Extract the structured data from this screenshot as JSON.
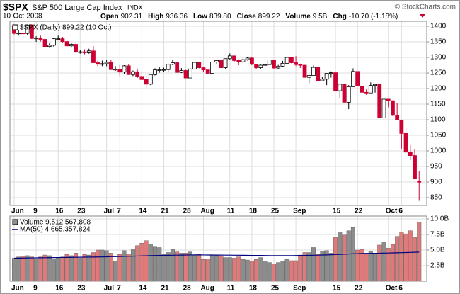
{
  "chart_data": {
    "type": "candlestick",
    "symbol": "$SPX",
    "name": "S&P 500 Large Cap Index",
    "exchange": "INDX",
    "credit": "© StockCharts.com",
    "date": "10-Oct-2008",
    "stats": [
      {
        "label": "Open",
        "value": "902.31"
      },
      {
        "label": "High",
        "value": "936.36"
      },
      {
        "label": "Low",
        "value": "839.80"
      },
      {
        "label": "Close",
        "value": "899.22"
      },
      {
        "label": "Volume",
        "value": "9.5B"
      },
      {
        "label": "Chg",
        "value": "-10.70 (-1.18%)"
      }
    ],
    "price_legend": "$SPX (Daily) 899.22 (10 Oct)",
    "volume_legend": "Volume 9,512,567,808",
    "ma_legend": "MA(50) 4,665,357,824",
    "categories": [
      "Jun",
      null,
      null,
      null,
      null,
      "9",
      null,
      null,
      null,
      null,
      "16",
      null,
      null,
      null,
      null,
      "23",
      null,
      null,
      null,
      null,
      null,
      "Jul",
      null,
      null,
      "7",
      null,
      null,
      null,
      null,
      "14",
      null,
      null,
      null,
      null,
      "21",
      null,
      null,
      null,
      null,
      "28",
      null,
      null,
      null,
      "Aug",
      null,
      null,
      null,
      null,
      null,
      "11",
      null,
      null,
      null,
      null,
      "18",
      null,
      null,
      null,
      null,
      "25",
      null,
      null,
      null,
      null,
      "Sep",
      null,
      null,
      null,
      null,
      null,
      null,
      null,
      null,
      "15",
      null,
      null,
      null,
      null,
      "22",
      null,
      null,
      null,
      null,
      null,
      null,
      "Oct",
      null,
      null,
      "6",
      null,
      null,
      null,
      null
    ],
    "open": [
      1400,
      1377,
      1378,
      1377,
      1404,
      1361,
      1362,
      1358,
      1335,
      1339,
      1360,
      1360,
      1351,
      1337,
      1342,
      1317,
      1318,
      1315,
      1321,
      1283,
      1278,
      1280,
      1284,
      1261,
      1262,
      1253,
      1273,
      1245,
      1254,
      1239,
      1229,
      1214,
      1245,
      1260,
      1260,
      1261,
      1278,
      1283,
      1252,
      1258,
      1234,
      1263,
      1284,
      1267,
      1260,
      1249,
      1285,
      1290,
      1267,
      1296,
      1305,
      1290,
      1286,
      1293,
      1298,
      1278,
      1267,
      1275,
      1277,
      1292,
      1266,
      1272,
      1281,
      1300,
      1283,
      1277,
      1275,
      1236,
      1242,
      1268,
      1225,
      1230,
      1249,
      1251,
      1193,
      1214,
      1156,
      1206,
      1255,
      1208,
      1188,
      1186,
      1210,
      1213,
      1106,
      1166,
      1161,
      1114,
      1099,
      1056,
      996,
      985,
      902.31
    ],
    "high": [
      1403,
      1388,
      1387,
      1406,
      1406,
      1368,
      1370,
      1362,
      1345,
      1363,
      1370,
      1366,
      1356,
      1346,
      1344,
      1323,
      1326,
      1328,
      1336,
      1290,
      1290,
      1292,
      1292,
      1272,
      1276,
      1275,
      1277,
      1258,
      1264,
      1256,
      1241,
      1246,
      1265,
      1268,
      1267,
      1280,
      1291,
      1284,
      1266,
      1260,
      1264,
      1285,
      1284,
      1270,
      1260,
      1285,
      1292,
      1290,
      1297,
      1313,
      1304,
      1294,
      1300,
      1301,
      1301,
      1278,
      1277,
      1279,
      1293,
      1292,
      1276,
      1289,
      1301,
      1300,
      1304,
      1280,
      1275,
      1244,
      1274,
      1268,
      1237,
      1249,
      1255,
      1251,
      1214,
      1214,
      1211,
      1265,
      1255,
      1212,
      1197,
      1220,
      1215,
      1210,
      1167,
      1167,
      1162,
      1153,
      1099,
      1072,
      1021,
      1005,
      936.36
    ],
    "low": [
      1374,
      1370,
      1370,
      1373,
      1359,
      1350,
      1351,
      1333,
      1331,
      1333,
      1355,
      1348,
      1335,
      1331,
      1314,
      1312,
      1310,
      1312,
      1283,
      1272,
      1272,
      1272,
      1260,
      1257,
      1240,
      1247,
      1244,
      1240,
      1234,
      1226,
      1200,
      1211,
      1242,
      1251,
      1254,
      1255,
      1275,
      1251,
      1250,
      1233,
      1234,
      1262,
      1265,
      1254,
      1247,
      1249,
      1280,
      1266,
      1263,
      1292,
      1285,
      1275,
      1276,
      1290,
      1275,
      1263,
      1262,
      1262,
      1277,
      1264,
      1263,
      1270,
      1281,
      1281,
      1272,
      1266,
      1236,
      1217,
      1242,
      1224,
      1225,
      1211,
      1235,
      1192,
      1170,
      1156,
      1134,
      1206,
      1207,
      1187,
      1180,
      1186,
      1187,
      1106,
      1106,
      1140,
      1112,
      1098,
      1007,
      996,
      970,
      909,
      839.8
    ],
    "close": [
      1377,
      1378,
      1377,
      1404,
      1361,
      1362,
      1358,
      1335,
      1339,
      1360,
      1360,
      1351,
      1337,
      1342,
      1317,
      1318,
      1315,
      1321,
      1283,
      1278,
      1280,
      1284,
      1261,
      1262,
      1253,
      1273,
      1245,
      1254,
      1239,
      1229,
      1214,
      1245,
      1260,
      1260,
      1261,
      1278,
      1283,
      1252,
      1258,
      1234,
      1263,
      1284,
      1267,
      1260,
      1249,
      1285,
      1290,
      1267,
      1296,
      1305,
      1290,
      1286,
      1293,
      1298,
      1278,
      1267,
      1275,
      1277,
      1292,
      1266,
      1272,
      1281,
      1300,
      1283,
      1277,
      1275,
      1236,
      1242,
      1268,
      1225,
      1230,
      1249,
      1251,
      1193,
      1214,
      1156,
      1206,
      1255,
      1208,
      1188,
      1186,
      1210,
      1213,
      1106,
      1166,
      1161,
      1114,
      1099,
      1056,
      996,
      985,
      910,
      899.22
    ],
    "volume": [
      3.7,
      3.9,
      4.0,
      4.1,
      3.9,
      3.6,
      3.9,
      4.2,
      4.1,
      3.6,
      3.7,
      3.9,
      4.3,
      4.1,
      4.5,
      3.7,
      4.3,
      4.2,
      4.6,
      5.0,
      5.0,
      4.9,
      4.5,
      3.2,
      4.3,
      4.9,
      4.4,
      5.2,
      5.7,
      6.1,
      6.5,
      6.0,
      5.6,
      5.4,
      4.4,
      4.6,
      5.1,
      4.7,
      4.5,
      4.5,
      4.7,
      4.2,
      4.3,
      3.5,
      3.6,
      4.2,
      4.1,
      4.0,
      3.8,
      3.8,
      3.7,
      3.9,
      3.5,
      3.4,
      3.2,
      3.5,
      3.8,
      3.2,
      3.0,
      2.8,
      3.0,
      3.2,
      3.5,
      3.3,
      3.3,
      4.2,
      4.6,
      4.6,
      5.4,
      4.4,
      4.8,
      4.9,
      4.5,
      7.0,
      7.9,
      7.4,
      8.1,
      8.6,
      5.0,
      5.1,
      4.5,
      4.8,
      4.5,
      5.8,
      6.2,
      5.3,
      5.9,
      7.2,
      7.9,
      7.6,
      8.1,
      7.0,
      9.51
    ],
    "ma50": [
      3.7,
      3.71,
      3.72,
      3.73,
      3.74,
      3.75,
      3.76,
      3.77,
      3.78,
      3.79,
      3.8,
      3.81,
      3.82,
      3.83,
      3.84,
      3.85,
      3.86,
      3.87,
      3.88,
      3.89,
      3.9,
      3.92,
      3.94,
      3.95,
      3.96,
      3.98,
      4.0,
      4.02,
      4.04,
      4.06,
      4.08,
      4.1,
      4.12,
      4.14,
      4.15,
      4.16,
      4.17,
      4.18,
      4.19,
      4.2,
      4.21,
      4.22,
      4.22,
      4.21,
      4.2,
      4.2,
      4.19,
      4.19,
      4.18,
      4.18,
      4.17,
      4.17,
      4.16,
      4.15,
      4.14,
      4.14,
      4.13,
      4.12,
      4.11,
      4.1,
      4.1,
      4.1,
      4.11,
      4.11,
      4.12,
      4.13,
      4.14,
      4.15,
      4.17,
      4.18,
      4.2,
      4.22,
      4.24,
      4.27,
      4.3,
      4.33,
      4.36,
      4.4,
      4.42,
      4.44,
      4.45,
      4.46,
      4.47,
      4.49,
      4.51,
      4.52,
      4.54,
      4.56,
      4.58,
      4.6,
      4.62,
      4.64,
      4.67
    ],
    "up_color": "#ffffff",
    "down_color": "#cc0033",
    "vol_up_color": "#8c8c8c",
    "vol_down_color": "#de7a7a",
    "ma_color": "#000080",
    "ylim": [
      825,
      1416
    ],
    "yticks": [
      850,
      900,
      950,
      1000,
      1050,
      1100,
      1150,
      1200,
      1250,
      1300,
      1350,
      1400
    ],
    "vol_ylim": [
      0,
      10.45
    ],
    "vol_yticks": [
      {
        "value": 2.5,
        "label": "2.5B"
      },
      {
        "value": 5,
        "label": "5.0B"
      },
      {
        "value": 7.5,
        "label": "7.5B"
      },
      {
        "value": 10,
        "label": "10.0B"
      }
    ],
    "grid": true
  }
}
